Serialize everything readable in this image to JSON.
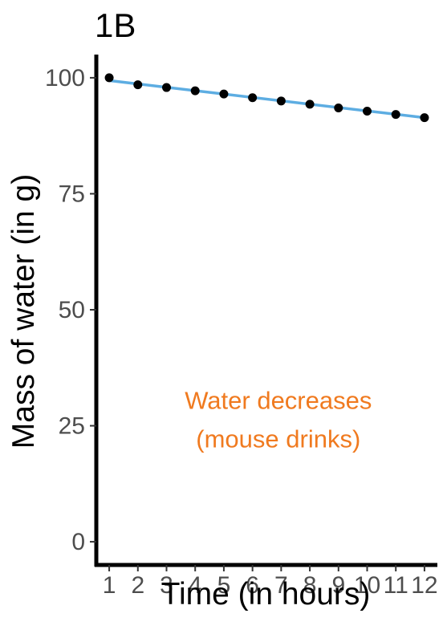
{
  "chart_data": {
    "type": "scatter",
    "title": "1B",
    "xlabel": "Time (in hours)",
    "ylabel": "Mass of water (in g)",
    "x": [
      1,
      2,
      3,
      4,
      5,
      6,
      7,
      8,
      9,
      10,
      11,
      12
    ],
    "series": [
      {
        "values": [
          100.0,
          98.5,
          97.9,
          97.2,
          96.5,
          95.7,
          95.0,
          94.3,
          93.5,
          92.8,
          92.1,
          91.4
        ],
        "color": "#000000",
        "marker": "circle"
      }
    ],
    "trend_line": {
      "type": "linear",
      "color": "#5dade2",
      "start": [
        1,
        99.4
      ],
      "end": [
        12,
        91.4
      ]
    },
    "xlim": [
      0.55,
      12.45
    ],
    "ylim": [
      -5,
      105
    ],
    "x_ticks": [
      1,
      2,
      3,
      4,
      5,
      6,
      7,
      8,
      9,
      10,
      11,
      12
    ],
    "y_ticks": [
      0,
      25,
      50,
      75,
      100
    ],
    "grid": false,
    "annotation": {
      "lines": [
        "Water decreases",
        "(mouse drinks)"
      ],
      "color": "#f07a1f",
      "x": 6.9,
      "y": 24.5
    }
  }
}
